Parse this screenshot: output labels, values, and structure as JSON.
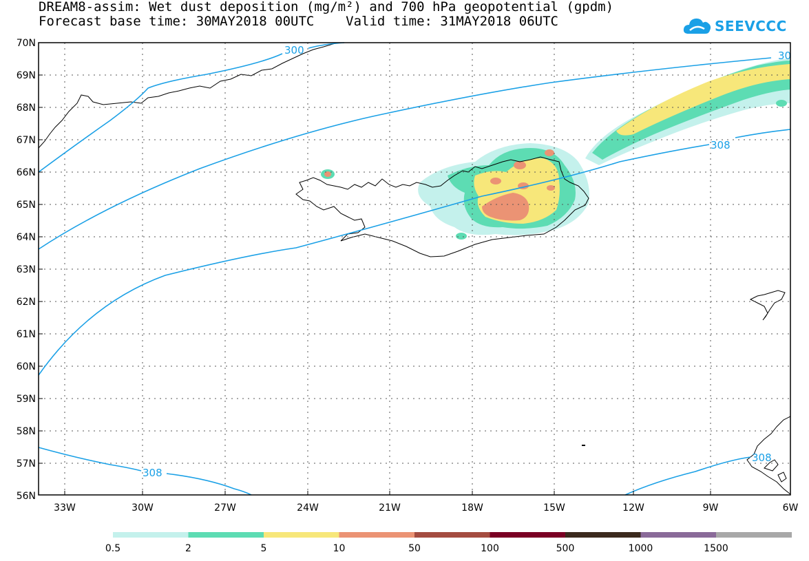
{
  "title_line1": "DREAM8-assim: Wet dust deposition (mg/m²) and 700 hPa geopotential (gpdm)",
  "title_line2_left": "Forecast base time: 30MAY2018 00UTC",
  "title_line2_right": "Valid time: 31MAY2018 06UTC",
  "logo": {
    "text": "SEEVCCC",
    "icon": "cloud-icon",
    "color": "#1aa0e6"
  },
  "lat_labels": [
    "70N",
    "69N",
    "68N",
    "67N",
    "66N",
    "65N",
    "64N",
    "63N",
    "62N",
    "61N",
    "60N",
    "59N",
    "58N",
    "57N",
    "56N"
  ],
  "lon_labels": [
    "33W",
    "30W",
    "27W",
    "24W",
    "21W",
    "18W",
    "15W",
    "12W",
    "9W",
    "6W"
  ],
  "contour_labels": [
    "300",
    "30",
    "308",
    "308",
    "308"
  ],
  "legend": {
    "colors": [
      "#c4f1ec",
      "#5ddcb3",
      "#f7e77a",
      "#eb9374",
      "#a44c40",
      "#7a0024",
      "#3b2a1e",
      "#8a6a99",
      "#a8a8a8"
    ],
    "labels": [
      "0.5",
      "2",
      "5",
      "10",
      "50",
      "100",
      "500",
      "1000",
      "1500"
    ]
  }
}
